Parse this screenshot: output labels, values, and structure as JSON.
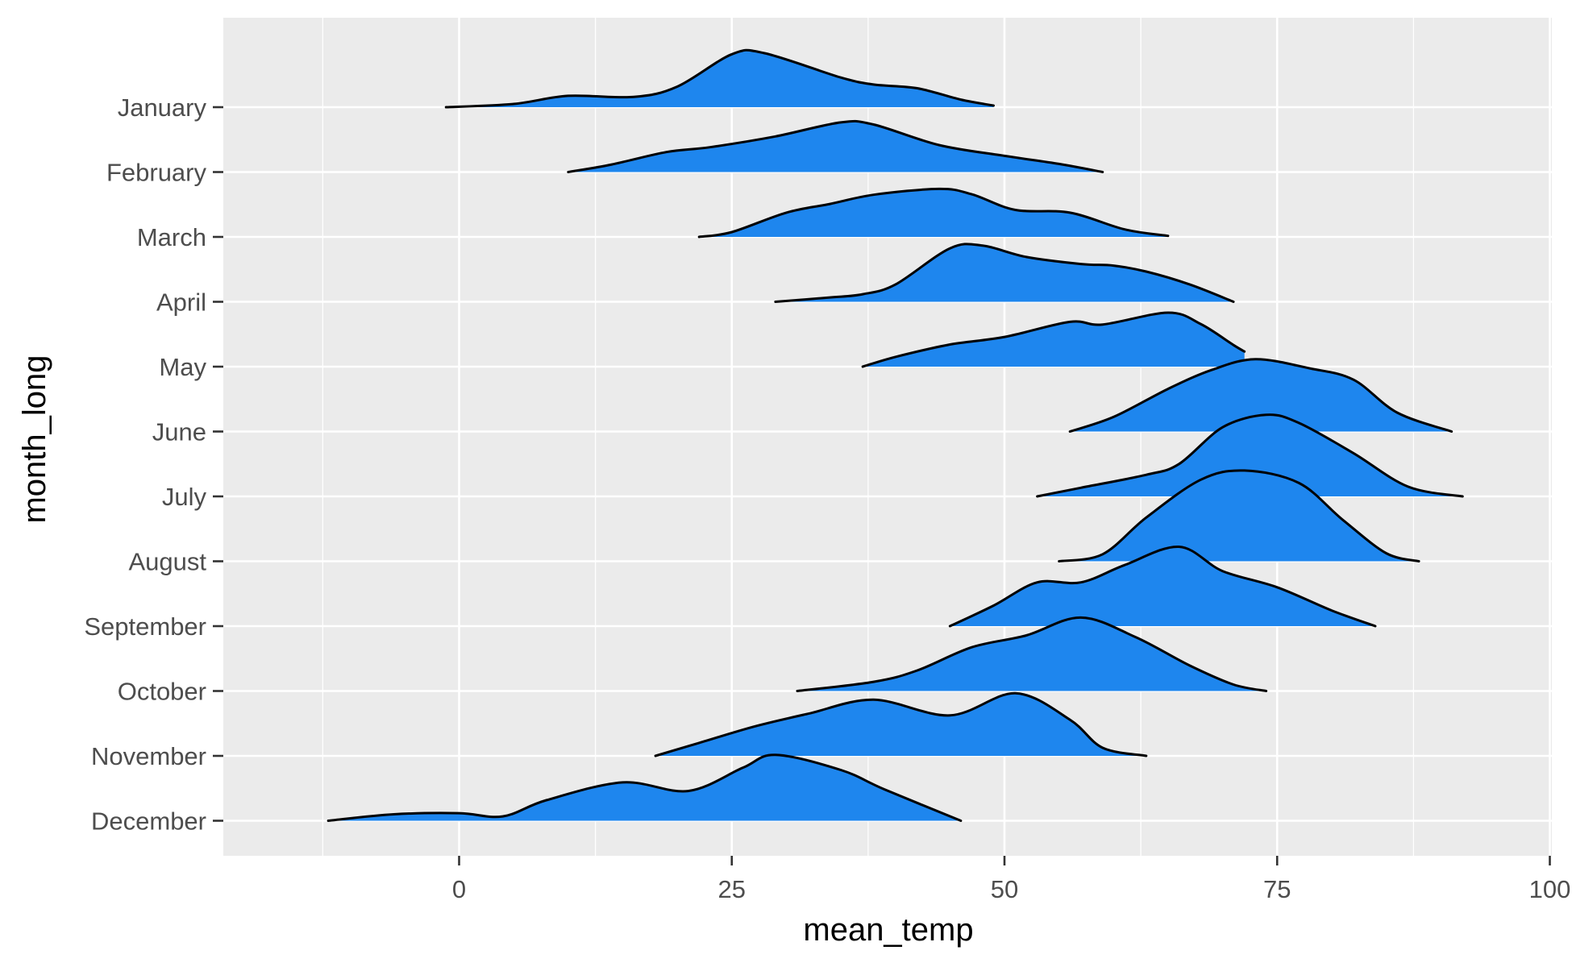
{
  "chart_data": {
    "type": "ridgeline",
    "xlabel": "mean_temp",
    "ylabel": "month_long",
    "xlim": [
      -25,
      100
    ],
    "x_ticks": [
      0,
      25,
      50,
      75,
      100
    ],
    "grid": true,
    "fill_color": "#1E86EE",
    "panel_color": "#EBEBEB",
    "categories": [
      "January",
      "February",
      "March",
      "April",
      "May",
      "June",
      "July",
      "August",
      "September",
      "October",
      "November",
      "December"
    ],
    "series": [
      {
        "name": "January",
        "points": [
          [
            -1.2,
            0
          ],
          [
            5,
            0.06
          ],
          [
            10,
            0.21
          ],
          [
            16,
            0.19
          ],
          [
            20,
            0.38
          ],
          [
            25,
            0.98
          ],
          [
            28,
            1.0
          ],
          [
            35,
            0.55
          ],
          [
            38,
            0.42
          ],
          [
            42,
            0.35
          ],
          [
            46,
            0.14
          ],
          [
            49,
            0.03
          ]
        ]
      },
      {
        "name": "February",
        "points": [
          [
            10,
            0
          ],
          [
            14,
            0.14
          ],
          [
            19,
            0.37
          ],
          [
            23,
            0.46
          ],
          [
            29,
            0.66
          ],
          [
            35,
            0.92
          ],
          [
            38,
            0.88
          ],
          [
            44,
            0.5
          ],
          [
            50,
            0.3
          ],
          [
            55,
            0.15
          ],
          [
            59,
            0
          ]
        ]
      },
      {
        "name": "March",
        "points": [
          [
            22,
            0
          ],
          [
            25,
            0.09
          ],
          [
            30,
            0.45
          ],
          [
            34,
            0.61
          ],
          [
            38,
            0.78
          ],
          [
            44,
            0.89
          ],
          [
            47,
            0.79
          ],
          [
            51,
            0.5
          ],
          [
            56,
            0.45
          ],
          [
            61,
            0.14
          ],
          [
            65,
            0.02
          ]
        ]
      },
      {
        "name": "April",
        "points": [
          [
            29,
            0
          ],
          [
            34,
            0.08
          ],
          [
            37,
            0.14
          ],
          [
            40,
            0.32
          ],
          [
            45,
            0.99
          ],
          [
            48,
            1.04
          ],
          [
            52,
            0.83
          ],
          [
            57,
            0.7
          ],
          [
            60,
            0.67
          ],
          [
            63,
            0.56
          ],
          [
            67,
            0.32
          ],
          [
            71,
            0
          ]
        ]
      },
      {
        "name": "May",
        "points": [
          [
            37,
            0
          ],
          [
            40,
            0.18
          ],
          [
            45,
            0.41
          ],
          [
            50,
            0.55
          ],
          [
            56,
            0.83
          ],
          [
            59,
            0.78
          ],
          [
            65,
            1.0
          ],
          [
            68,
            0.79
          ],
          [
            71,
            0.4
          ],
          [
            72,
            0.28
          ]
        ]
      },
      {
        "name": "June",
        "points": [
          [
            56,
            0
          ],
          [
            60,
            0.27
          ],
          [
            65,
            0.79
          ],
          [
            69,
            1.14
          ],
          [
            73,
            1.34
          ],
          [
            78,
            1.17
          ],
          [
            82,
            0.96
          ],
          [
            86,
            0.35
          ],
          [
            91,
            0
          ]
        ]
      },
      {
        "name": "July",
        "points": [
          [
            53,
            0
          ],
          [
            57,
            0.16
          ],
          [
            63,
            0.4
          ],
          [
            66,
            0.6
          ],
          [
            70,
            1.28
          ],
          [
            74,
            1.51
          ],
          [
            77,
            1.36
          ],
          [
            82,
            0.8
          ],
          [
            87,
            0.18
          ],
          [
            92,
            0
          ]
        ]
      },
      {
        "name": "August",
        "points": [
          [
            55,
            0
          ],
          [
            59,
            0.13
          ],
          [
            63,
            0.81
          ],
          [
            68,
            1.51
          ],
          [
            72,
            1.68
          ],
          [
            77,
            1.45
          ],
          [
            81,
            0.77
          ],
          [
            85,
            0.15
          ],
          [
            88,
            0
          ]
        ]
      },
      {
        "name": "September",
        "points": [
          [
            45,
            0
          ],
          [
            49,
            0.38
          ],
          [
            53,
            0.81
          ],
          [
            57,
            0.81
          ],
          [
            61,
            1.13
          ],
          [
            66,
            1.47
          ],
          [
            70,
            1.02
          ],
          [
            75,
            0.72
          ],
          [
            80,
            0.29
          ],
          [
            84,
            0
          ]
        ]
      },
      {
        "name": "October",
        "points": [
          [
            31,
            0
          ],
          [
            38,
            0.17
          ],
          [
            42,
            0.38
          ],
          [
            47,
            0.81
          ],
          [
            52,
            1.03
          ],
          [
            57,
            1.36
          ],
          [
            62,
            1.0
          ],
          [
            67,
            0.47
          ],
          [
            71,
            0.12
          ],
          [
            74,
            0
          ]
        ]
      },
      {
        "name": "November",
        "points": [
          [
            18,
            0
          ],
          [
            22,
            0.24
          ],
          [
            27,
            0.54
          ],
          [
            32,
            0.78
          ],
          [
            38,
            1.04
          ],
          [
            45,
            0.75
          ],
          [
            51,
            1.16
          ],
          [
            56,
            0.67
          ],
          [
            59,
            0.15
          ],
          [
            63,
            0
          ]
        ]
      },
      {
        "name": "December",
        "points": [
          [
            -12,
            0
          ],
          [
            -6,
            0.12
          ],
          [
            0,
            0.14
          ],
          [
            4,
            0.08
          ],
          [
            8,
            0.38
          ],
          [
            15,
            0.71
          ],
          [
            21,
            0.55
          ],
          [
            26,
            0.98
          ],
          [
            29,
            1.22
          ],
          [
            35,
            0.94
          ],
          [
            39,
            0.58
          ],
          [
            46,
            0
          ]
        ]
      }
    ]
  }
}
